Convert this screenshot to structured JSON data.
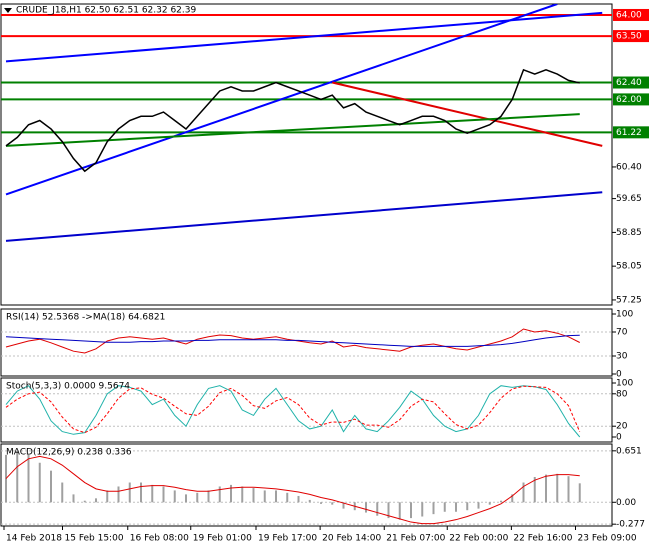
{
  "chart_data": [
    {
      "type": "line",
      "title": "CRUDE_J18,H1 62.50 62.51 62.32 62.39",
      "ylim": [
        57.13,
        64.26
      ],
      "yticks": [
        57.25,
        58.05,
        58.85,
        59.65,
        {
          "value": 60.4,
          "label": "60.40"
        }
      ],
      "levels": [
        {
          "value": 64.0,
          "label": "64.00",
          "color": "#ff0000"
        },
        {
          "value": 63.5,
          "label": "63.50",
          "color": "#ff0000"
        },
        {
          "value": 62.4,
          "label": "62.40",
          "color": "#008000"
        },
        {
          "value": 62.0,
          "label": "62.00",
          "color": "#008000"
        },
        {
          "value": 61.22,
          "label": "61.22",
          "color": "#008000"
        }
      ],
      "trendlines": [
        {
          "color": "#0000ff",
          "points": [
            [
              0,
              59.75
            ],
            [
              49,
              64.26
            ]
          ]
        },
        {
          "color": "#0000ff",
          "points": [
            [
              0,
              62.9
            ],
            [
              53,
              64.05
            ]
          ]
        },
        {
          "color": "#0000cc",
          "points": [
            [
              0,
              58.65
            ],
            [
              53,
              59.8
            ]
          ]
        },
        {
          "color": "#e00000",
          "points": [
            [
              29,
              62.4
            ],
            [
              53,
              60.9
            ]
          ]
        },
        {
          "color": "#008000",
          "points": [
            [
              0,
              60.9
            ],
            [
              51,
              61.65
            ]
          ]
        }
      ],
      "series": [
        {
          "color": "#000000",
          "values": [
            60.9,
            61.1,
            61.4,
            61.5,
            61.3,
            61.0,
            60.6,
            60.3,
            60.5,
            61.0,
            61.3,
            61.5,
            61.6,
            61.6,
            61.7,
            61.5,
            61.3,
            61.6,
            61.9,
            62.2,
            62.3,
            62.2,
            62.2,
            62.3,
            62.4,
            62.3,
            62.2,
            62.1,
            62.0,
            62.1,
            61.8,
            61.9,
            61.7,
            61.6,
            61.5,
            61.4,
            61.5,
            61.6,
            61.6,
            61.5,
            61.3,
            61.2,
            61.3,
            61.4,
            61.6,
            62.0,
            62.7,
            62.6,
            62.7,
            62.6,
            62.45,
            62.39
          ]
        }
      ]
    },
    {
      "type": "line",
      "title": "RSI(14) 52.5368 ->MA(18) 64.6821",
      "ylim": [
        0,
        100
      ],
      "yticks": [
        0,
        30,
        70,
        100
      ],
      "series": [
        {
          "color": "#e00000",
          "values": [
            45,
            50,
            55,
            58,
            52,
            45,
            38,
            35,
            42,
            55,
            60,
            62,
            60,
            58,
            60,
            55,
            50,
            58,
            62,
            65,
            64,
            60,
            58,
            60,
            62,
            58,
            55,
            52,
            50,
            55,
            45,
            48,
            44,
            42,
            40,
            38,
            45,
            48,
            50,
            46,
            42,
            40,
            45,
            50,
            55,
            62,
            75,
            70,
            72,
            68,
            62,
            52.5
          ]
        },
        {
          "color": "#0000c0",
          "values": [
            62,
            61,
            60,
            59,
            58,
            57,
            56,
            55,
            54,
            53,
            53,
            53,
            54,
            54,
            55,
            55,
            55,
            56,
            56,
            57,
            57,
            57,
            57,
            57,
            57,
            56,
            56,
            55,
            54,
            53,
            52,
            51,
            50,
            49,
            48,
            47,
            46,
            46,
            46,
            46,
            46,
            46,
            47,
            48,
            49,
            51,
            54,
            57,
            60,
            62,
            64,
            64.68
          ]
        }
      ]
    },
    {
      "type": "line",
      "title": "Stoch(5,3,3) 0.0000 9.5674",
      "ylim": [
        0,
        100
      ],
      "yticks": [
        0,
        20,
        80,
        100
      ],
      "series": [
        {
          "color": "#20b2aa",
          "values": [
            60,
            85,
            95,
            70,
            30,
            10,
            5,
            8,
            40,
            80,
            95,
            92,
            85,
            60,
            70,
            40,
            20,
            60,
            90,
            95,
            85,
            50,
            40,
            70,
            90,
            60,
            30,
            15,
            20,
            50,
            10,
            40,
            15,
            10,
            30,
            55,
            85,
            70,
            40,
            20,
            10,
            15,
            40,
            80,
            95,
            92,
            95,
            93,
            88,
            60,
            25,
            0
          ]
        },
        {
          "color": "#ff0000",
          "dashed": true,
          "values": [
            55,
            70,
            80,
            83,
            65,
            37,
            15,
            8,
            18,
            43,
            72,
            89,
            91,
            79,
            72,
            57,
            43,
            40,
            57,
            82,
            90,
            77,
            58,
            53,
            67,
            73,
            60,
            35,
            22,
            28,
            27,
            33,
            22,
            22,
            18,
            32,
            57,
            70,
            65,
            43,
            23,
            15,
            22,
            45,
            72,
            89,
            94,
            93,
            92,
            80,
            58,
            9.57
          ]
        }
      ]
    },
    {
      "type": "bar",
      "title": "MACD(12,26,9) 0.238 0.336",
      "ylim": [
        -0.3,
        0.75
      ],
      "yticks": [
        0.651,
        {
          "value": 0,
          "label": "0.00"
        },
        -0.277
      ],
      "xticks": [
        {
          "value": 0,
          "label": "14 Feb 2018"
        },
        {
          "value": 5.2,
          "label": "15 Feb 15:00"
        },
        {
          "value": 11,
          "label": "16 Feb 08:00"
        },
        {
          "value": 16.6,
          "label": "19 Feb 01:00"
        },
        {
          "value": 22.4,
          "label": "19 Feb 17:00"
        },
        {
          "value": 28.1,
          "label": "20 Feb 14:00"
        },
        {
          "value": 33.8,
          "label": "21 Feb 07:00"
        },
        {
          "value": 39.4,
          "label": "22 Feb 00:00"
        },
        {
          "value": 45.1,
          "label": "22 Feb 16:00"
        },
        {
          "value": 50.8,
          "label": "23 Feb 09:00"
        }
      ],
      "series": [
        {
          "color": "#a0a0a0",
          "values": [
            0.6,
            0.65,
            0.6,
            0.5,
            0.4,
            0.25,
            0.1,
            0.02,
            0.05,
            0.15,
            0.2,
            0.25,
            0.25,
            0.22,
            0.2,
            0.15,
            0.1,
            0.12,
            0.15,
            0.2,
            0.22,
            0.2,
            0.18,
            0.15,
            0.15,
            0.12,
            0.08,
            0.03,
            -0.02,
            -0.03,
            -0.08,
            -0.1,
            -0.13,
            -0.17,
            -0.2,
            -0.22,
            -0.2,
            -0.18,
            -0.15,
            -0.12,
            -0.12,
            -0.1,
            -0.08,
            -0.03,
            0.02,
            0.1,
            0.25,
            0.32,
            0.35,
            0.36,
            0.33,
            0.24
          ]
        },
        {
          "color": "#e00000",
          "line": true,
          "values": [
            0.3,
            0.45,
            0.55,
            0.58,
            0.55,
            0.47,
            0.36,
            0.25,
            0.17,
            0.14,
            0.14,
            0.17,
            0.2,
            0.21,
            0.21,
            0.19,
            0.16,
            0.14,
            0.14,
            0.16,
            0.18,
            0.19,
            0.19,
            0.18,
            0.17,
            0.15,
            0.13,
            0.1,
            0.06,
            0.03,
            -0.01,
            -0.05,
            -0.09,
            -0.13,
            -0.17,
            -0.21,
            -0.25,
            -0.27,
            -0.27,
            -0.25,
            -0.22,
            -0.18,
            -0.13,
            -0.08,
            -0.02,
            0.08,
            0.2,
            0.28,
            0.33,
            0.35,
            0.35,
            0.336
          ]
        }
      ]
    }
  ]
}
